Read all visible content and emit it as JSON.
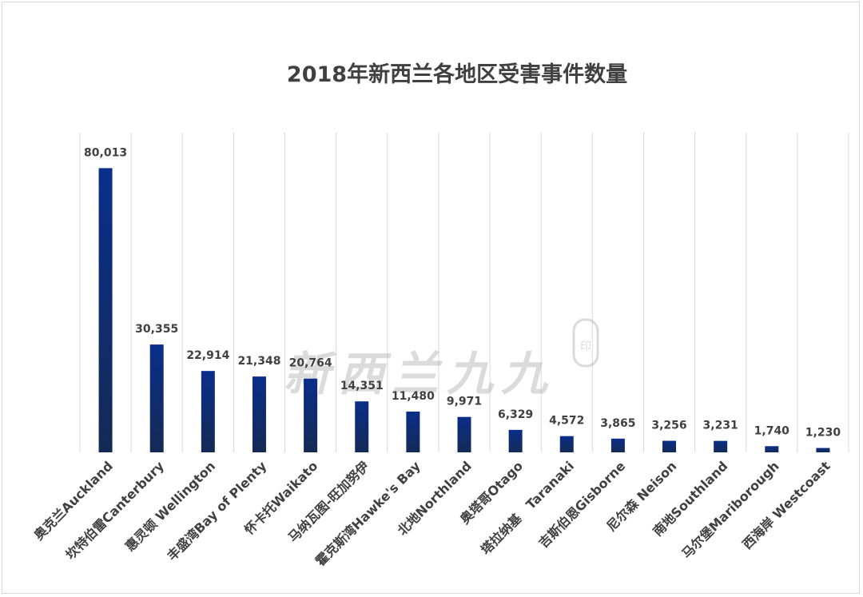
{
  "chart_data": {
    "type": "bar",
    "title": "2018年新西兰各地区受害事件数量",
    "categories": [
      "奥克兰Auckland",
      "坎特伯雷Canterbury",
      "惠灵顿 Wellington",
      "丰盛湾Bay of Plenty",
      "怀卡托Waikato",
      "马纳瓦图-旺加努伊",
      "霍克斯湾Hawke's Bay",
      "北地Northland",
      "奥塔哥Otago",
      "塔拉纳基　Taranaki",
      "吉斯伯恩Gisborne",
      "尼尔森 Neison",
      "南地Southland",
      "马尔堡Mariborough",
      "西海岸 Westcoast"
    ],
    "values": [
      80013,
      30355,
      22914,
      21348,
      20764,
      14351,
      11480,
      9971,
      6329,
      4572,
      3865,
      3256,
      3231,
      1740,
      1230
    ],
    "data_labels": [
      "80,013",
      "30,355",
      "22,914",
      "21,348",
      "20,764",
      "14,351",
      "11,480",
      "9,971",
      "6,329",
      "4,572",
      "3,865",
      "3,256",
      "3,231",
      "1,740",
      "1,230"
    ],
    "ylim": [
      0,
      90000
    ],
    "xlabel": "",
    "ylabel": "",
    "grid": "vertical category separators",
    "legend": "none",
    "colors": {
      "bar_top": "#0a2e8a",
      "bar_bottom": "#142a55",
      "text": "#404040",
      "grid": "#d9d9d9"
    }
  },
  "watermark": "新西兰九九"
}
